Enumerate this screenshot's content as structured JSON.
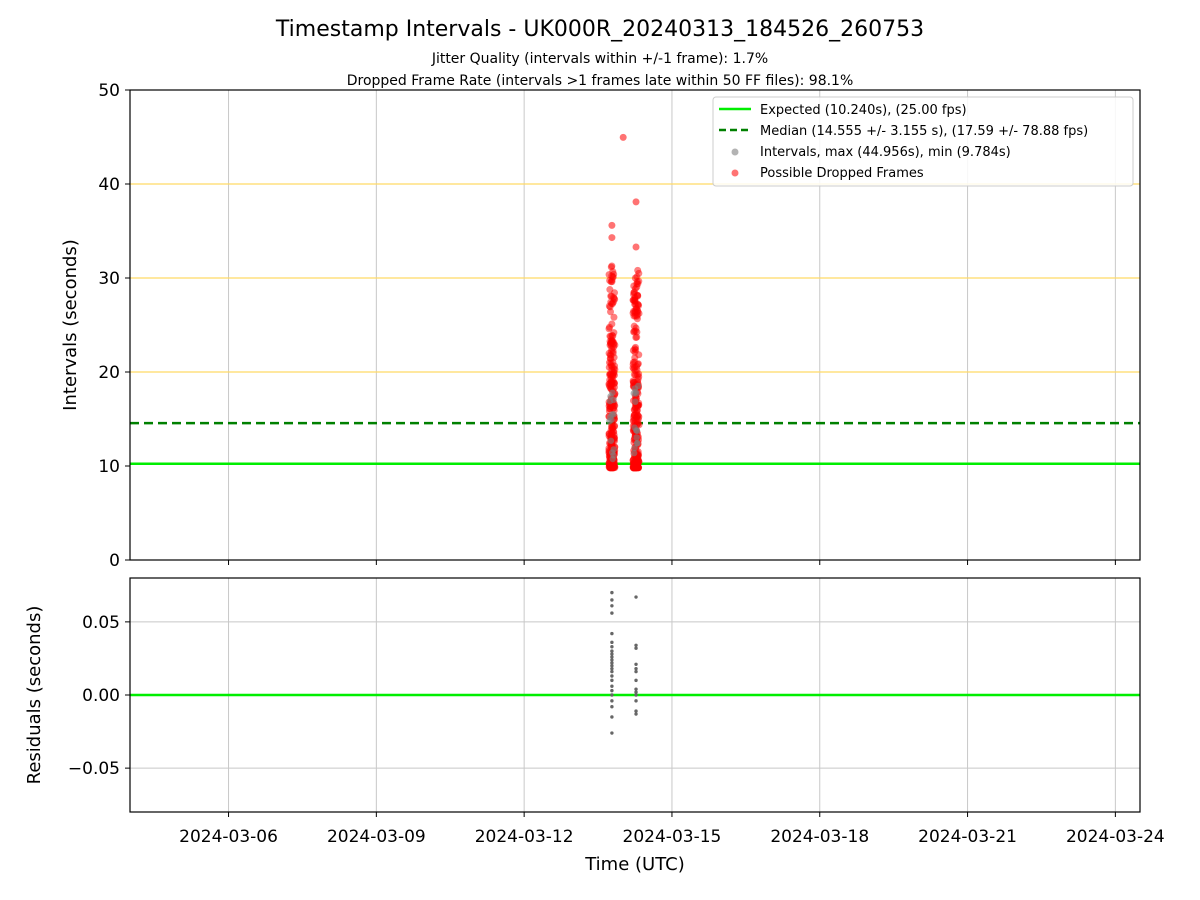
{
  "chart_data": {
    "title": "Timestamp Intervals - UK000R_20240313_184526_260753",
    "subtitle_1": "Jitter Quality (intervals within +/-1 frame): 1.7%",
    "subtitle_2": "Dropped Frame Rate (intervals >1 frames late within 50 FF files): 98.1%",
    "xlabel": "Time (UTC)",
    "x_range": [
      "2024-03-04 00:00",
      "2024-03-24 12:00"
    ],
    "x_ticks": [
      "2024-03-06",
      "2024-03-09",
      "2024-03-12",
      "2024-03-15",
      "2024-03-18",
      "2024-03-21",
      "2024-03-24"
    ],
    "grid": true,
    "colors": {
      "expected": "#00ee00",
      "median": "#008000",
      "intervals": "#808080",
      "dropped": "#ff0000",
      "threshold": "#ffd966"
    },
    "panels": [
      {
        "name": "intervals",
        "type": "scatter",
        "ylabel": "Intervals (seconds)",
        "ylim": [
          0,
          50
        ],
        "y_ticks": [
          "0",
          "10",
          "20",
          "30",
          "40",
          "50"
        ],
        "threshold_lines": [
          20,
          30,
          40
        ],
        "expected": 10.24,
        "median": 14.555,
        "legend_position": "top-right",
        "legend": {
          "expected": "Expected (10.240s), (25.00 fps)",
          "median": "Median (14.555 +/- 3.155 s), (17.59 +/- 78.88 fps)",
          "intervals": "Intervals, max (44.956s), min (9.784s)",
          "dropped": "Possible Dropped Frames"
        },
        "clusters": [
          {
            "time": "2024-03-13 18:45",
            "range": [
              9.8,
              31.5
            ]
          },
          {
            "time": "2024-03-14 06:30",
            "range": [
              9.8,
              31.0
            ]
          }
        ],
        "outliers": [
          {
            "time": "2024-03-13 18:45",
            "y": 35.6
          },
          {
            "time": "2024-03-13 18:45",
            "y": 34.3
          },
          {
            "time": "2024-03-14 00:15",
            "y": 44.96
          },
          {
            "time": "2024-03-14 06:30",
            "y": 38.1
          },
          {
            "time": "2024-03-14 06:30",
            "y": 33.3
          }
        ]
      },
      {
        "name": "residuals",
        "type": "scatter",
        "ylabel": "Residuals (seconds)",
        "ylim": [
          -0.08,
          0.08
        ],
        "y_ticks": [
          "0.05",
          "0.00",
          "−0.05"
        ],
        "zero_line": 0,
        "points_group_1_time": "2024-03-13 18:45",
        "points_group_1": [
          0.07,
          0.065,
          0.061,
          0.056,
          0.042,
          0.036,
          0.033,
          0.03,
          0.028,
          0.026,
          0.024,
          0.022,
          0.02,
          0.018,
          0.016,
          0.013,
          0.01,
          0.006,
          0.003,
          0.0,
          -0.004,
          -0.008,
          -0.015,
          -0.026
        ],
        "points_group_2_time": "2024-03-14 06:30",
        "points_group_2": [
          0.067,
          0.034,
          0.032,
          0.021,
          0.018,
          0.016,
          0.01,
          0.004,
          0.002,
          0.0,
          -0.004,
          -0.011,
          -0.013
        ]
      }
    ]
  }
}
